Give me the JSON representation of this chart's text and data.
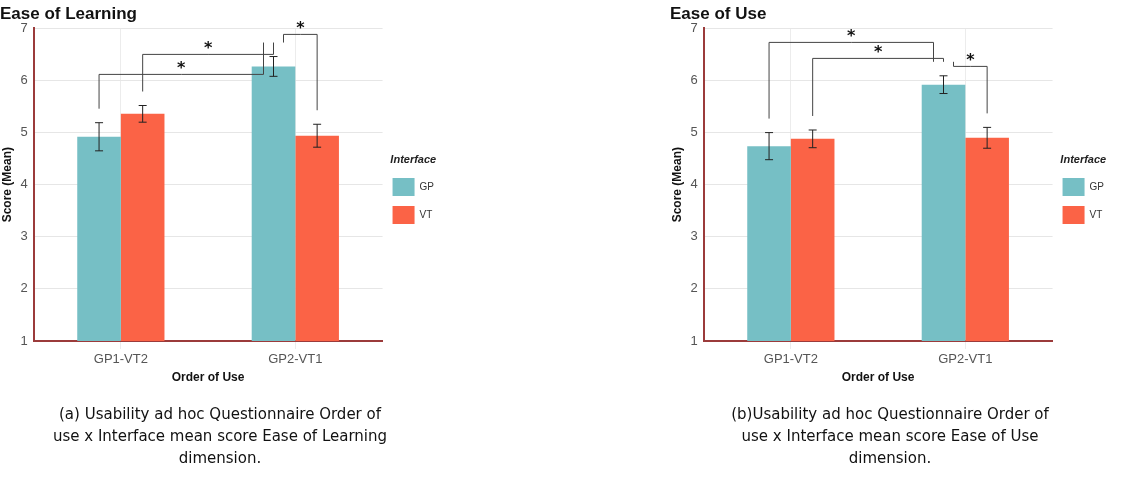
{
  "chart_data": [
    {
      "type": "bar",
      "title": "Ease of Learning",
      "xlabel": "Order of Use",
      "ylabel": "Score (Mean)",
      "legend_title": "Interface",
      "categories": [
        "GP1-VT2",
        "GP2-VT1"
      ],
      "series": [
        {
          "name": "GP",
          "color": "#76bfc5",
          "values": [
            4.92,
            6.27
          ],
          "errors": [
            0.27,
            0.19
          ]
        },
        {
          "name": "VT",
          "color": "#fb6346",
          "values": [
            5.36,
            4.94
          ],
          "errors": [
            0.16,
            0.22
          ]
        }
      ],
      "ylim": [
        1,
        7
      ],
      "yticks": [
        1,
        2,
        3,
        4,
        5,
        6,
        7
      ],
      "grid": true,
      "legend": "right",
      "annotations": [
        "*",
        "*",
        "*",
        "(a) Usability ad hoc Questionnaire Order of use x Interface mean score Ease of Learning dimension."
      ]
    },
    {
      "type": "bar",
      "title": "Ease of Use",
      "xlabel": "Order of Use",
      "ylabel": "Score (Mean)",
      "legend_title": "Interface",
      "categories": [
        "GP1-VT2",
        "GP2-VT1"
      ],
      "series": [
        {
          "name": "GP",
          "color": "#76bfc5",
          "values": [
            4.74,
            5.92
          ],
          "errors": [
            0.26,
            0.17
          ]
        },
        {
          "name": "VT",
          "color": "#fb6346",
          "values": [
            4.88,
            4.9
          ],
          "errors": [
            0.17,
            0.2
          ]
        }
      ],
      "ylim": [
        1,
        7
      ],
      "yticks": [
        1,
        2,
        3,
        4,
        5,
        6,
        7
      ],
      "grid": true,
      "legend": "right",
      "annotations": [
        "*",
        "*",
        "*",
        "(b)Usability ad hoc Questionnaire Order of use x Interface mean score Ease of Use dimension."
      ]
    }
  ]
}
